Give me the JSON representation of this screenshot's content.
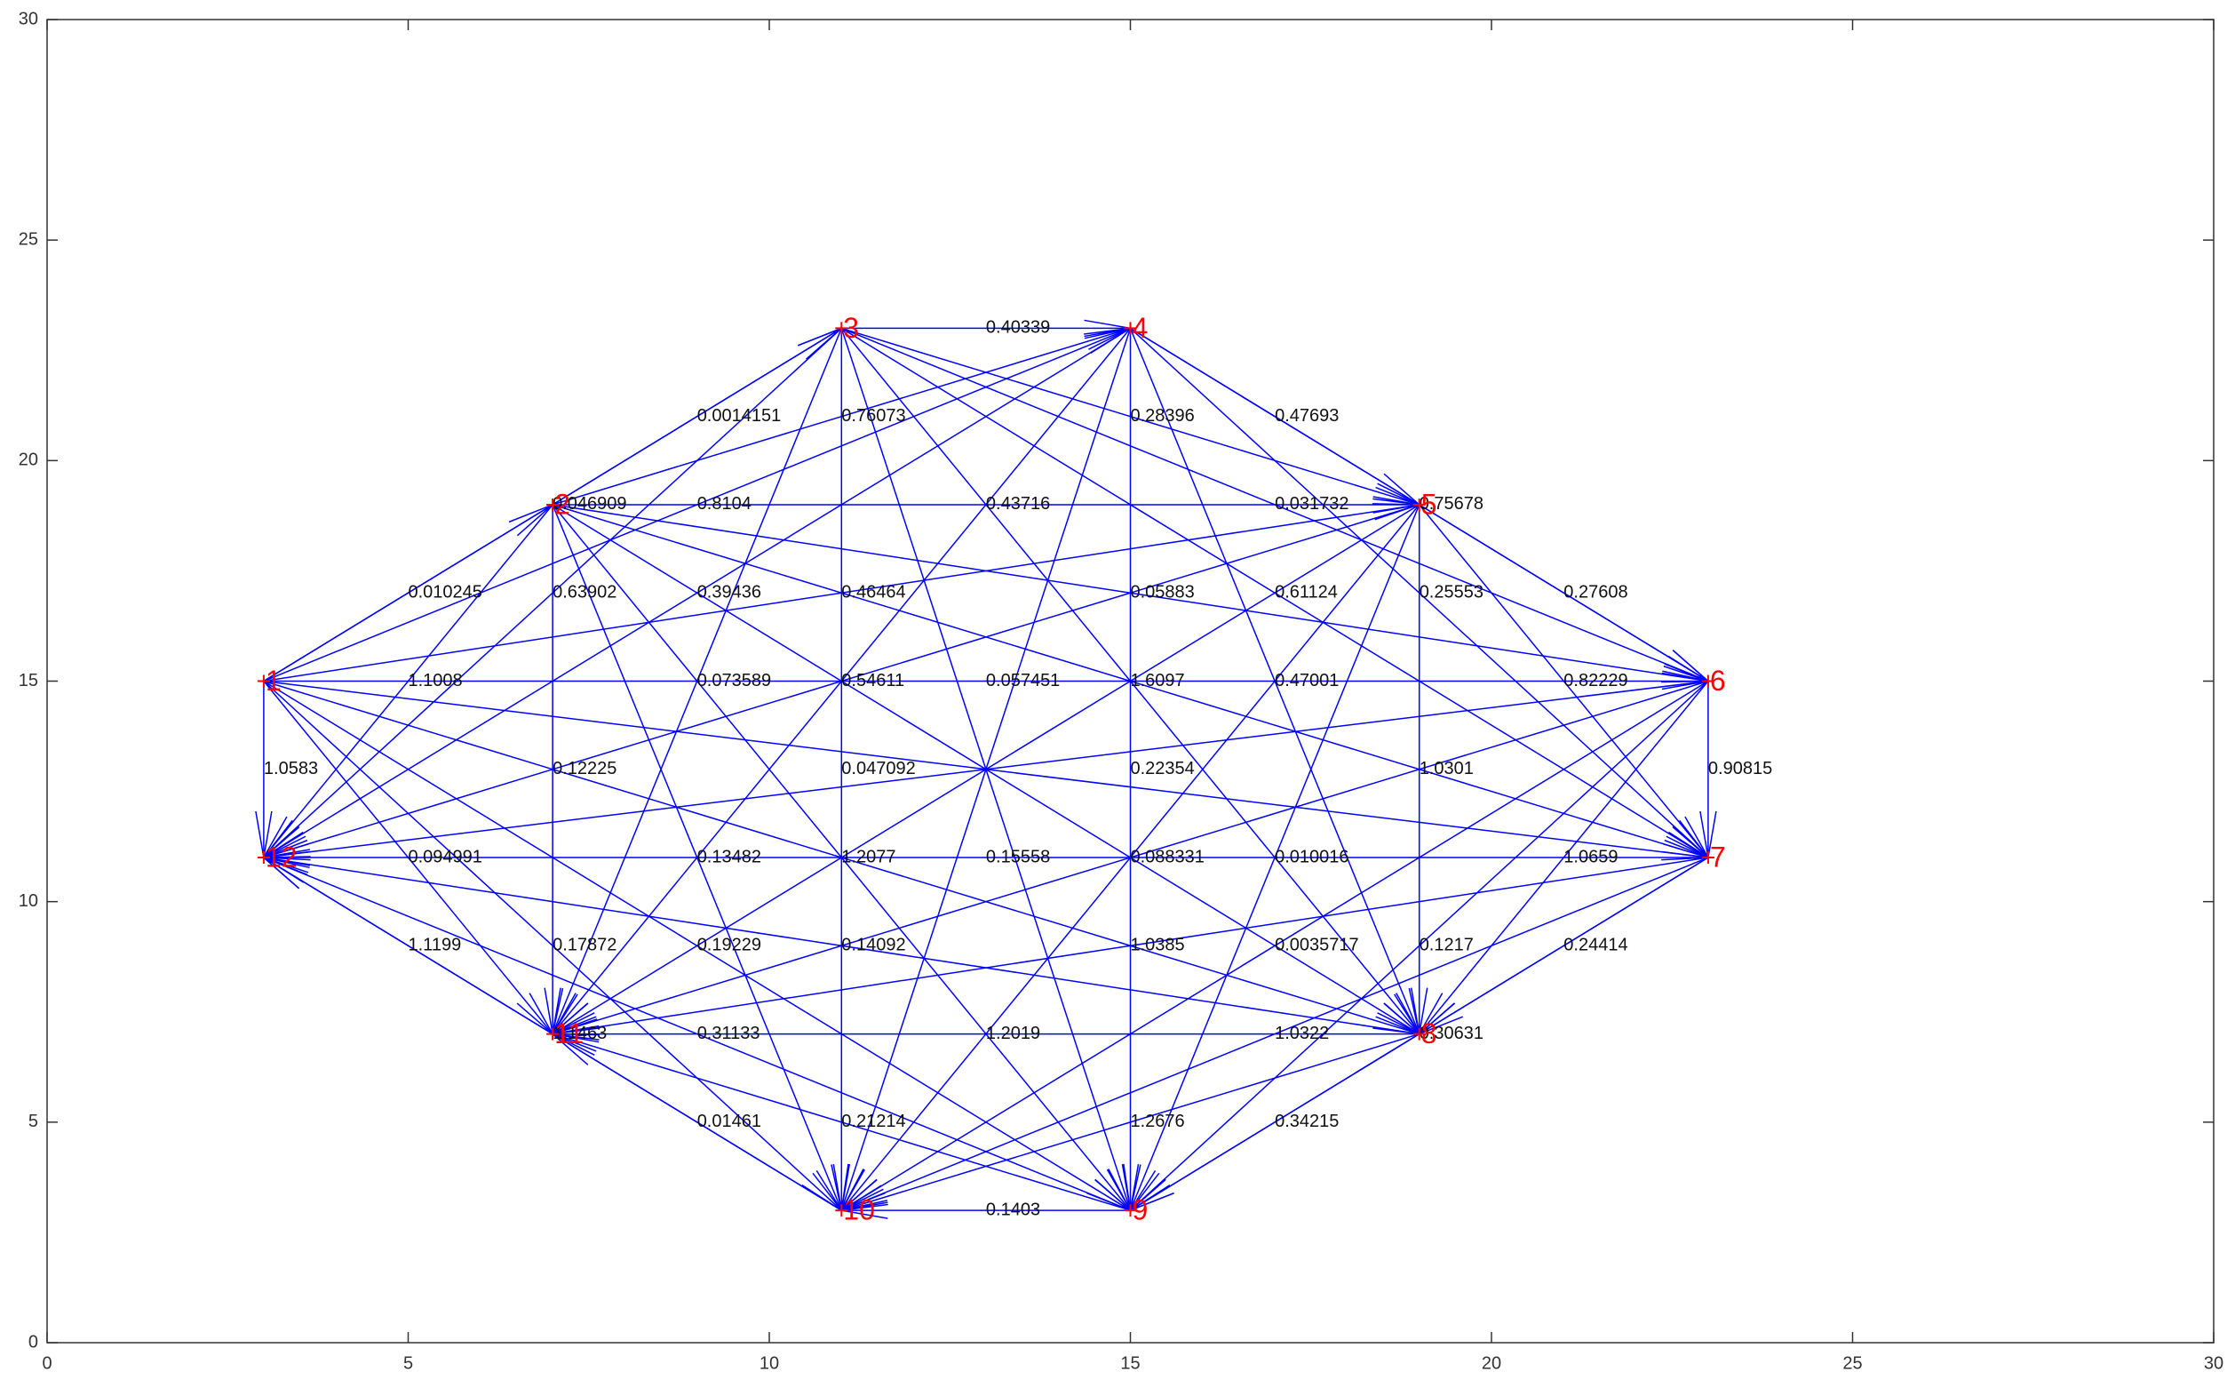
{
  "chart_data": {
    "type": "graph",
    "xlim": [
      0,
      30
    ],
    "ylim": [
      0,
      30
    ],
    "xticks": [
      0,
      5,
      10,
      15,
      20,
      25,
      30
    ],
    "yticks": [
      0,
      5,
      10,
      15,
      20,
      25,
      30
    ],
    "edge_color": "#0000ff",
    "node_color": "#ff0000",
    "nodes": [
      {
        "label": "1",
        "x": 3,
        "y": 15
      },
      {
        "label": "2",
        "x": 7,
        "y": 19
      },
      {
        "label": "3",
        "x": 11,
        "y": 23
      },
      {
        "label": "4",
        "x": 15,
        "y": 23
      },
      {
        "label": "5",
        "x": 19,
        "y": 19
      },
      {
        "label": "6",
        "x": 23,
        "y": 15
      },
      {
        "label": "7",
        "x": 23,
        "y": 11
      },
      {
        "label": "8",
        "x": 19,
        "y": 7
      },
      {
        "label": "9",
        "x": 15,
        "y": 3
      },
      {
        "label": "10",
        "x": 11,
        "y": 3
      },
      {
        "label": "11",
        "x": 7,
        "y": 7
      },
      {
        "label": "12",
        "x": 3,
        "y": 11
      }
    ],
    "edges": [
      {
        "from": 1,
        "to": 2,
        "weight": 0.010245
      },
      {
        "from": 1,
        "to": 3,
        "weight": 0.046909
      },
      {
        "from": 1,
        "to": 4,
        "weight": 0.8104
      },
      {
        "from": 1,
        "to": 5,
        "weight": 0.46464
      },
      {
        "from": 1,
        "to": 6,
        "weight": 0.057451
      },
      {
        "from": 1,
        "to": 7
      },
      {
        "from": 1,
        "to": 8,
        "weight": 1.2077
      },
      {
        "from": 1,
        "to": 9,
        "weight": 0.19229
      },
      {
        "from": 1,
        "to": 10,
        "weight": 0.17872
      },
      {
        "from": 1,
        "to": 11,
        "weight": 0.094991
      },
      {
        "from": 1,
        "to": 12,
        "weight": 1.0583
      },
      {
        "from": 2,
        "to": 3,
        "weight": 0.0014151
      },
      {
        "from": 2,
        "to": 4,
        "weight": 0.76073
      },
      {
        "from": 2,
        "to": 5,
        "weight": 0.43716
      },
      {
        "from": 2,
        "to": 6,
        "weight": 0.05883
      },
      {
        "from": 2,
        "to": 7,
        "weight": 1.6097
      },
      {
        "from": 2,
        "to": 8
      },
      {
        "from": 2,
        "to": 9
      },
      {
        "from": 2,
        "to": 10,
        "weight": 0.13482
      },
      {
        "from": 2,
        "to": 11,
        "weight": 0.12225
      },
      {
        "from": 2,
        "to": 12,
        "weight": 1.1008
      },
      {
        "from": 3,
        "to": 4,
        "weight": 0.40339
      },
      {
        "from": 3,
        "to": 5,
        "weight": 0.28396
      },
      {
        "from": 3,
        "to": 6,
        "weight": 0.031732
      },
      {
        "from": 3,
        "to": 7,
        "weight": 0.61124
      },
      {
        "from": 3,
        "to": 8
      },
      {
        "from": 3,
        "to": 9
      },
      {
        "from": 3,
        "to": 10,
        "weight": 0.047092
      },
      {
        "from": 3,
        "to": 11,
        "weight": 0.073589
      },
      {
        "from": 3,
        "to": 12,
        "weight": 0.63902
      },
      {
        "from": 4,
        "to": 5,
        "weight": 0.47693
      },
      {
        "from": 4,
        "to": 6,
        "weight": 0.75678
      },
      {
        "from": 4,
        "to": 7,
        "weight": 0.25553
      },
      {
        "from": 4,
        "to": 8,
        "weight": 0.47001
      },
      {
        "from": 4,
        "to": 9,
        "weight": 0.22354
      },
      {
        "from": 4,
        "to": 10
      },
      {
        "from": 4,
        "to": 11,
        "weight": 0.54611
      },
      {
        "from": 4,
        "to": 12,
        "weight": 0.39436
      },
      {
        "from": 5,
        "to": 6,
        "weight": 0.27608
      },
      {
        "from": 5,
        "to": 7,
        "weight": 0.82229
      },
      {
        "from": 5,
        "to": 8,
        "weight": 1.0301
      },
      {
        "from": 5,
        "to": 9,
        "weight": 0.010016
      },
      {
        "from": 5,
        "to": 10,
        "weight": 0.088331
      },
      {
        "from": 5,
        "to": 11
      },
      {
        "from": 5,
        "to": 12
      },
      {
        "from": 6,
        "to": 7,
        "weight": 0.90815
      },
      {
        "from": 6,
        "to": 8,
        "weight": 1.0659
      },
      {
        "from": 6,
        "to": 9,
        "weight": 0.1217
      },
      {
        "from": 6,
        "to": 10,
        "weight": 0.0035717
      },
      {
        "from": 6,
        "to": 11
      },
      {
        "from": 6,
        "to": 12
      },
      {
        "from": 7,
        "to": 8,
        "weight": 0.24414
      },
      {
        "from": 7,
        "to": 9,
        "weight": 0.30631
      },
      {
        "from": 7,
        "to": 10,
        "weight": 1.0322
      },
      {
        "from": 7,
        "to": 11,
        "weight": 1.0385
      },
      {
        "from": 7,
        "to": 12,
        "weight": 0.15558
      },
      {
        "from": 8,
        "to": 9,
        "weight": 0.34215
      },
      {
        "from": 8,
        "to": 10,
        "weight": 1.2676
      },
      {
        "from": 8,
        "to": 11,
        "weight": 1.2019
      },
      {
        "from": 8,
        "to": 12,
        "weight": 0.14092
      },
      {
        "from": 9,
        "to": 10,
        "weight": 0.1403
      },
      {
        "from": 9,
        "to": 11,
        "weight": 0.21214
      },
      {
        "from": 9,
        "to": 12,
        "weight": 0.31133
      },
      {
        "from": 10,
        "to": 11,
        "weight": 0.01461
      },
      {
        "from": 10,
        "to": 12,
        "weight": 1.1463
      },
      {
        "from": 11,
        "to": 12,
        "weight": 1.1199
      }
    ]
  }
}
